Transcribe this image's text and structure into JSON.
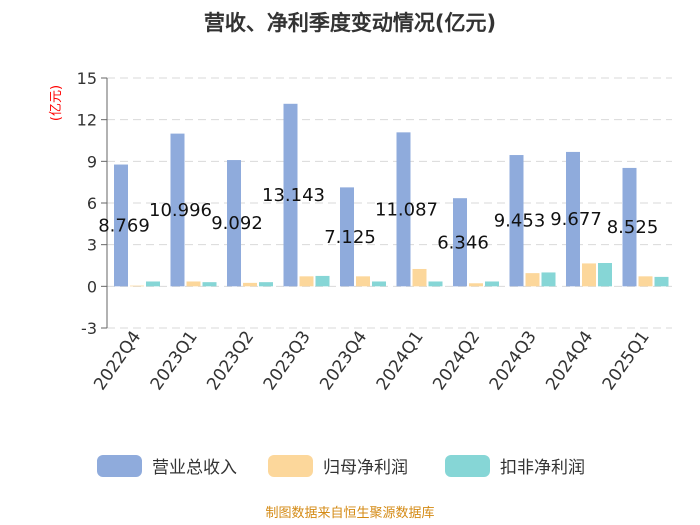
{
  "chart_data": {
    "type": "bar",
    "title": "营收、净利季度变动情况(亿元)",
    "ylabel": "(亿元)",
    "ylim": [
      -3,
      15
    ],
    "yticks": [
      -3,
      0,
      3,
      6,
      9,
      12,
      15
    ],
    "grid": true,
    "legend_position": "bottom",
    "categories": [
      "2022Q4",
      "2023Q1",
      "2023Q2",
      "2023Q3",
      "2023Q4",
      "2024Q1",
      "2024Q2",
      "2024Q3",
      "2024Q4",
      "2025Q1"
    ],
    "series": [
      {
        "name": "营业总收入",
        "color": "#8fabdc",
        "values": [
          8.769,
          10.996,
          9.092,
          13.143,
          7.125,
          11.087,
          6.346,
          9.453,
          9.677,
          8.525
        ]
      },
      {
        "name": "归母净利润",
        "color": "#fcd79b",
        "values": [
          0.05,
          0.35,
          0.25,
          0.72,
          0.72,
          1.25,
          0.22,
          0.95,
          1.65,
          0.72
        ]
      },
      {
        "name": "扣非净利润",
        "color": "#86d6d6",
        "values": [
          0.35,
          0.3,
          0.3,
          0.75,
          0.35,
          0.35,
          0.35,
          1.0,
          1.68,
          0.68
        ]
      }
    ],
    "data_labels": [
      "8.769",
      "10.996",
      "9.092",
      "13.143",
      "7.125",
      "11.087",
      "6.346",
      "9.453",
      "9.677",
      "8.525"
    ]
  },
  "footer": {
    "source": "制图数据来自恒生聚源数据库"
  }
}
